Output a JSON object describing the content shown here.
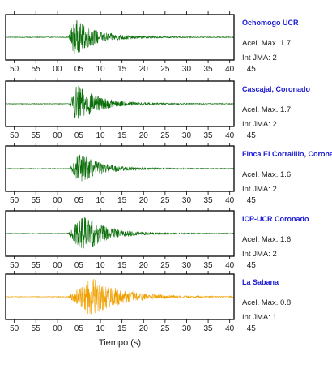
{
  "chart_data": {
    "type": "line",
    "xlabel": "Tiempo (s)",
    "tick_labels": [
      "50",
      "55",
      "00",
      "05",
      "10",
      "15",
      "20",
      "25",
      "30",
      "35",
      "40",
      "45"
    ],
    "xlim": [
      48,
      101
    ],
    "panels": [
      {
        "station": "Ochomogo UCR",
        "accel_label": "Acel. Max. 1.7",
        "int_label": "Int JMA: 2",
        "accel_max": 1.7,
        "jma": 2,
        "color": "#0a6e0a",
        "onset": 62.5,
        "peak": 64.0,
        "env": 0.85
      },
      {
        "station": "Cascajal, Coronado",
        "accel_label": "Acel. Max. 1.7",
        "int_label": "Int JMA: 2",
        "accel_max": 1.7,
        "jma": 2,
        "color": "#0a6e0a",
        "onset": 62.8,
        "peak": 64.5,
        "env": 0.9
      },
      {
        "station": "Finca El Corralillo, Coronado",
        "accel_label": "Acel. Max. 1.6",
        "int_label": "Int JMA: 2",
        "accel_max": 1.6,
        "jma": 2,
        "color": "#0a6e0a",
        "onset": 62.8,
        "peak": 65.0,
        "env": 0.72
      },
      {
        "station": "ICP-UCR Coronado",
        "accel_label": "Acel. Max. 1.6",
        "int_label": "Int JMA: 2",
        "accel_max": 1.6,
        "jma": 2,
        "color": "#0a6e0a",
        "onset": 62.5,
        "peak": 66.0,
        "env": 0.92
      },
      {
        "station": "La Sabana",
        "accel_label": "Acel. Max. 0.8",
        "int_label": "Int JMA: 1",
        "accel_max": 0.8,
        "jma": 1,
        "color": "#f0a000",
        "onset": 62.5,
        "peak": 68.0,
        "env": 0.95
      }
    ]
  },
  "colors": {
    "title": "#1a1ad6",
    "text": "#222222",
    "frame": "#000000"
  }
}
